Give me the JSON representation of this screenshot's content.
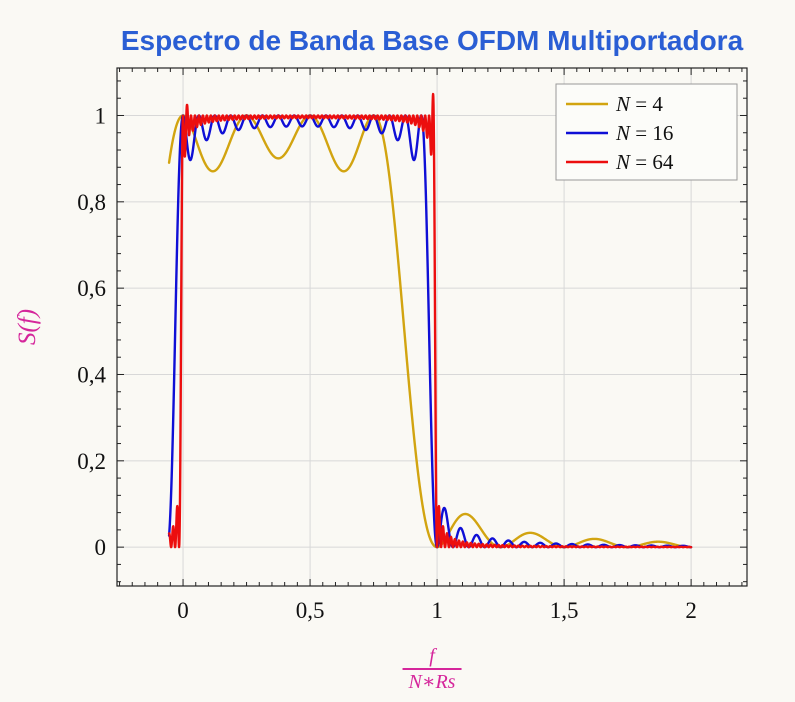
{
  "title": "Espectro de Banda Base OFDM Multiportadora",
  "colors": {
    "title": "#2a5ed4",
    "axis_label": "#d5269b",
    "grid": "#d8d8d8",
    "frame": "#222222",
    "tick": "#222222",
    "text": "#111111",
    "legend_border": "#999999",
    "legend_fill": "#fcfcf9",
    "background": "#faf9f4"
  },
  "chart_data": {
    "type": "line",
    "title": "Espectro de Banda Base OFDM Multiportadora",
    "ylabel": "S(f)",
    "xlabel": "f/(N*Rs)",
    "xlabel_numerator": "f",
    "xlabel_denominator": "N∗Rs",
    "xlim": [
      -0.26,
      2.22
    ],
    "ylim": [
      -0.09,
      1.11
    ],
    "grid": true,
    "legend_position": "top-right",
    "x_ticks": [
      {
        "v": 0,
        "label": "0"
      },
      {
        "v": 0.5,
        "label": "0,5"
      },
      {
        "v": 1,
        "label": "1"
      },
      {
        "v": 1.5,
        "label": "1,5"
      },
      {
        "v": 2,
        "label": "2"
      }
    ],
    "y_ticks": [
      {
        "v": 0,
        "label": "0"
      },
      {
        "v": 0.2,
        "label": "0,2"
      },
      {
        "v": 0.4,
        "label": "0,4"
      },
      {
        "v": 0.6,
        "label": "0,6"
      },
      {
        "v": 0.8,
        "label": "0,8"
      },
      {
        "v": 1,
        "label": "1"
      }
    ],
    "x_minor_step": 0.05,
    "y_minor_step": 0.04,
    "x_range": [
      -0.055,
      2.0
    ],
    "samples": 2600,
    "formula": "S(u) = sum_{k=0}^{N-1} sinc^2(u*N - k), with u = f/(N*Rs), sinc(t)=sin(pi t)/(pi t)",
    "series": [
      {
        "name": "N = 4",
        "N": 4,
        "color": "#d2a410",
        "width": 2.4
      },
      {
        "name": "N = 16",
        "N": 16,
        "color": "#0f0fd6",
        "width": 2.4
      },
      {
        "name": "N = 64",
        "N": 64,
        "color": "#ec0e0e",
        "width": 2.4,
        "overshoot": [
          {
            "u": 0.016,
            "a": 0.025,
            "w": 0.006
          },
          {
            "u": 0.984,
            "a": 0.05,
            "w": 0.005
          }
        ]
      }
    ]
  }
}
